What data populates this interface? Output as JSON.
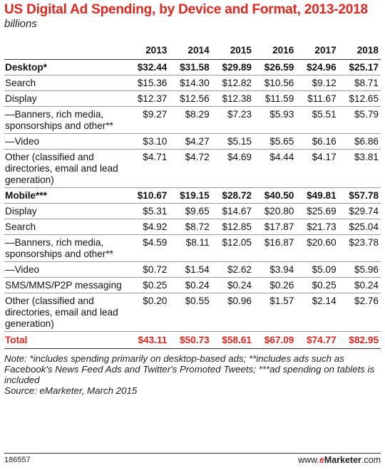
{
  "chart_data": {
    "type": "table",
    "title": "US Digital Ad Spending, by Device and Format, 2013-2018",
    "subtitle": "billions",
    "columns": [
      "2013",
      "2014",
      "2015",
      "2016",
      "2017",
      "2018"
    ],
    "rows": [
      {
        "label": "Desktop*",
        "group": true,
        "values": [
          "$32.44",
          "$31.58",
          "$29.89",
          "$26.59",
          "$24.96",
          "$25.17"
        ]
      },
      {
        "label": "Search",
        "values": [
          "$15.36",
          "$14.30",
          "$12.82",
          "$10.56",
          "$9.12",
          "$8.71"
        ]
      },
      {
        "label": "Display",
        "values": [
          "$12.37",
          "$12.56",
          "$12.38",
          "$11.59",
          "$11.67",
          "$12.65"
        ]
      },
      {
        "label": "—Banners, rich media, sponsorships and other**",
        "values": [
          "$9.27",
          "$8.29",
          "$7.23",
          "$5.93",
          "$5.51",
          "$5.79"
        ]
      },
      {
        "label": "—Video",
        "values": [
          "$3.10",
          "$4.27",
          "$5.15",
          "$5.65",
          "$6.16",
          "$6.86"
        ]
      },
      {
        "label": "Other (classified and directories, email and lead generation)",
        "values": [
          "$4.71",
          "$4.72",
          "$4.69",
          "$4.44",
          "$4.17",
          "$3.81"
        ]
      },
      {
        "label": "Mobile***",
        "group": true,
        "values": [
          "$10.67",
          "$19.15",
          "$28.72",
          "$40.50",
          "$49.81",
          "$57.78"
        ]
      },
      {
        "label": "Display",
        "values": [
          "$5.31",
          "$9.65",
          "$14.67",
          "$20.80",
          "$25.69",
          "$29.74"
        ]
      },
      {
        "label": "Search",
        "values": [
          "$4.92",
          "$8.72",
          "$12.85",
          "$17.87",
          "$21.73",
          "$25.04"
        ]
      },
      {
        "label": "—Banners, rich media, sponsorships and other**",
        "values": [
          "$4.59",
          "$8.11",
          "$12.05",
          "$16.87",
          "$20.60",
          "$23.78"
        ]
      },
      {
        "label": "—Video",
        "values": [
          "$0.72",
          "$1.54",
          "$2.62",
          "$3.94",
          "$5.09",
          "$5.96"
        ]
      },
      {
        "label": "SMS/MMS/P2P messaging",
        "values": [
          "$0.25",
          "$0.24",
          "$0.24",
          "$0.26",
          "$0.25",
          "$0.24"
        ]
      },
      {
        "label": "Other (classified and directories, email and lead generation)",
        "values": [
          "$0.20",
          "$0.55",
          "$0.96",
          "$1.57",
          "$2.14",
          "$2.76"
        ]
      },
      {
        "label": "Total",
        "total": true,
        "values": [
          "$43.11",
          "$50.73",
          "$58.61",
          "$67.09",
          "$74.77",
          "$82.95"
        ]
      }
    ],
    "note": "Note: *includes spending primarily on desktop-based ads; **includes ads such as Facebook's News Feed Ads and Twitter's Promoted Tweets; ***ad spending on tablets is included",
    "source": "Source: eMarketer, March 2015",
    "chart_id": "186557",
    "brand": {
      "prefix": "www.",
      "e": "e",
      "name": "Marketer",
      "suffix": ".com"
    },
    "colors": {
      "accent": "#e0261e",
      "text": "#111111",
      "rule": "#333333"
    }
  }
}
